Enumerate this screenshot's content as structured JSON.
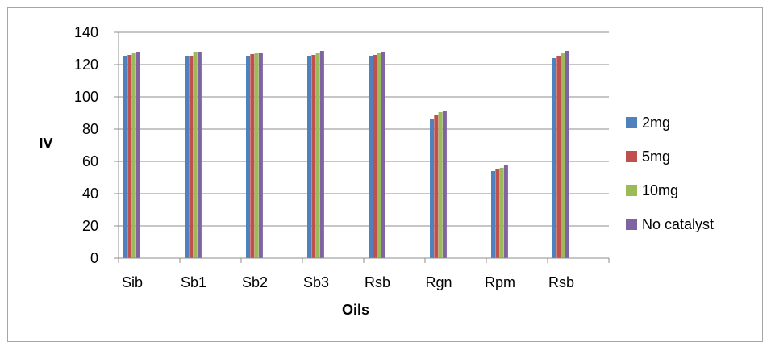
{
  "chart_data": {
    "type": "bar",
    "title": "",
    "xlabel": "Oils",
    "ylabel": "IV",
    "ylim": [
      0,
      140
    ],
    "yticks": [
      0,
      20,
      40,
      60,
      80,
      100,
      120,
      140
    ],
    "grid": true,
    "legend_position": "right",
    "categories": [
      "Sib",
      "Sb1",
      "Sb2",
      "Sb3",
      "Rsb",
      "Rgn",
      "Rpm",
      "Rsb"
    ],
    "series": [
      {
        "name": "2mg",
        "color": "#4f81bd",
        "values": [
          125,
          125,
          125,
          125,
          125,
          86,
          54,
          124
        ]
      },
      {
        "name": "5mg",
        "color": "#c0504d",
        "values": [
          126,
          125.5,
          126.5,
          126,
          126,
          88.5,
          55,
          125.5
        ]
      },
      {
        "name": "10mg",
        "color": "#9bbb59",
        "values": [
          127,
          127.5,
          127,
          127,
          127,
          90.5,
          56,
          127
        ]
      },
      {
        "name": "No catalyst",
        "color": "#8064a2",
        "values": [
          128,
          128,
          127,
          128.5,
          128,
          91.5,
          58,
          128.5
        ]
      }
    ]
  }
}
